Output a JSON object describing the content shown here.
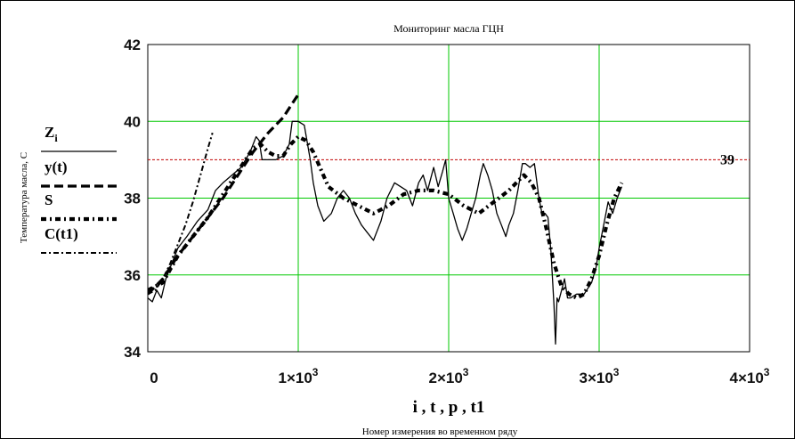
{
  "chart_data": {
    "type": "line",
    "title": "Мониторинг масла ГЦН",
    "xlabel": "Номер измерения во временном ряду",
    "x_vars": "i , t , p , t1",
    "ylabel": "Температура масла, С",
    "xlim": [
      0,
      4000
    ],
    "ylim": [
      34,
      42
    ],
    "x_ticks": [
      0,
      1000,
      2000,
      3000,
      4000
    ],
    "x_tick_labels": [
      {
        "base": "0",
        "exp": ""
      },
      {
        "base": "1×10",
        "exp": "3"
      },
      {
        "base": "2×10",
        "exp": "3"
      },
      {
        "base": "3×10",
        "exp": "3"
      },
      {
        "base": "4×10",
        "exp": "3"
      }
    ],
    "y_ticks": [
      34,
      36,
      38,
      40,
      42
    ],
    "y_tick_labels": [
      "34",
      "36",
      "38",
      "40",
      "42"
    ],
    "grid": true,
    "grid_color": "#00c800",
    "threshold": {
      "value": 39,
      "label": "39",
      "color": "#c00000"
    },
    "legend_position": "left",
    "legend": [
      {
        "base": "Z",
        "sub": "i",
        "style": "solid"
      },
      {
        "base": "y(t)",
        "sub": "",
        "style": "dash"
      },
      {
        "base": "S",
        "sub": "",
        "style": "dot-heavy"
      },
      {
        "base": "C(t1)",
        "sub": "",
        "style": "dash-dot"
      }
    ],
    "series": [
      {
        "style": "solid",
        "x": [
          0,
          30,
          60,
          90,
          120,
          160,
          200,
          260,
          330,
          400,
          450,
          500,
          560,
          620,
          680,
          720,
          740,
          760,
          800,
          850,
          900,
          940,
          960,
          1000,
          1040,
          1080,
          1100,
          1130,
          1170,
          1220,
          1260,
          1300,
          1340,
          1380,
          1420,
          1460,
          1500,
          1550,
          1590,
          1640,
          1680,
          1720,
          1760,
          1800,
          1830,
          1860,
          1880,
          1900,
          1930,
          1960,
          1980,
          2000,
          2030,
          2060,
          2090,
          2120,
          2150,
          2180,
          2210,
          2230,
          2260,
          2290,
          2320,
          2350,
          2380,
          2400,
          2430,
          2460,
          2490,
          2510,
          2540,
          2570,
          2600,
          2620,
          2640,
          2660,
          2680,
          2700,
          2710,
          2720,
          2730,
          2750,
          2770,
          2790,
          2810,
          2850,
          2900,
          2950,
          2980,
          3000,
          3030,
          3060,
          3090,
          3120,
          3150
        ],
        "values": [
          35.4,
          35.3,
          35.6,
          35.4,
          35.9,
          36.3,
          36.7,
          37.0,
          37.4,
          37.7,
          38.2,
          38.4,
          38.6,
          38.8,
          39.2,
          39.6,
          39.5,
          39.0,
          39.0,
          39.0,
          39.1,
          39.4,
          40.0,
          40.0,
          39.9,
          39.0,
          38.4,
          37.8,
          37.4,
          37.6,
          38.0,
          38.2,
          38.0,
          37.6,
          37.3,
          37.1,
          36.9,
          37.4,
          38.0,
          38.4,
          38.3,
          38.2,
          37.8,
          38.4,
          38.6,
          38.2,
          38.5,
          38.8,
          38.3,
          38.7,
          39.0,
          38.0,
          37.6,
          37.2,
          36.9,
          37.2,
          37.6,
          38.0,
          38.6,
          38.9,
          38.6,
          38.2,
          37.6,
          37.3,
          37.0,
          37.3,
          37.6,
          38.2,
          38.9,
          38.9,
          38.8,
          38.9,
          38.0,
          37.6,
          37.6,
          37.5,
          36.6,
          35.2,
          34.2,
          35.4,
          35.3,
          35.6,
          35.9,
          35.4,
          35.4,
          35.5,
          35.5,
          35.8,
          36.2,
          36.7,
          37.3,
          37.9,
          37.6,
          38.0,
          38.3
        ]
      },
      {
        "style": "dash",
        "x": [
          0,
          100,
          200,
          300,
          400,
          500,
          600,
          700,
          800,
          900,
          950,
          1000
        ],
        "values": [
          35.5,
          35.9,
          36.5,
          37.0,
          37.5,
          38.0,
          38.6,
          39.2,
          39.7,
          40.1,
          40.4,
          40.7
        ]
      },
      {
        "style": "dot-heavy",
        "x": [
          0,
          100,
          200,
          300,
          400,
          500,
          600,
          700,
          750,
          800,
          850,
          900,
          950,
          1000,
          1050,
          1100,
          1200,
          1300,
          1400,
          1500,
          1600,
          1700,
          1800,
          1900,
          2000,
          2100,
          2200,
          2300,
          2400,
          2500,
          2550,
          2600,
          2650,
          2700,
          2750,
          2800,
          2850,
          2900,
          2950,
          3000,
          3050,
          3100,
          3150
        ],
        "values": [
          35.6,
          35.8,
          36.5,
          37.0,
          37.5,
          38.1,
          38.7,
          39.3,
          39.4,
          39.2,
          39.1,
          39.1,
          39.4,
          39.6,
          39.5,
          39.2,
          38.3,
          38.0,
          37.8,
          37.6,
          37.8,
          38.1,
          38.2,
          38.2,
          38.1,
          37.8,
          37.6,
          37.9,
          38.2,
          38.6,
          38.4,
          38.0,
          37.2,
          36.3,
          35.7,
          35.5,
          35.4,
          35.5,
          35.9,
          36.5,
          37.3,
          38.0,
          38.4
        ]
      },
      {
        "style": "dash-dot",
        "x": [
          0,
          50,
          100,
          150,
          200,
          250,
          300,
          350,
          400,
          430
        ],
        "values": [
          35.5,
          35.6,
          35.9,
          36.3,
          36.8,
          37.3,
          37.9,
          38.6,
          39.3,
          39.7
        ]
      }
    ]
  }
}
